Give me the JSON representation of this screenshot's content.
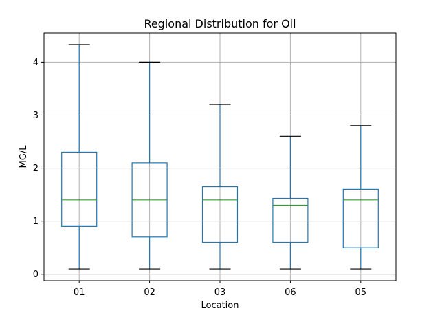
{
  "chart_data": {
    "type": "box",
    "title": "Regional Distribution for Oil",
    "xlabel": "Location",
    "ylabel": "MG/L",
    "categories": [
      "01",
      "02",
      "03",
      "06",
      "05"
    ],
    "boxes": [
      {
        "whisker_low": 0.1,
        "q1": 0.9,
        "median": 1.4,
        "q3": 2.3,
        "whisker_high": 4.33
      },
      {
        "whisker_low": 0.1,
        "q1": 0.7,
        "median": 1.4,
        "q3": 2.1,
        "whisker_high": 4.0
      },
      {
        "whisker_low": 0.1,
        "q1": 0.6,
        "median": 1.4,
        "q3": 1.65,
        "whisker_high": 3.2
      },
      {
        "whisker_low": 0.1,
        "q1": 0.6,
        "median": 1.3,
        "q3": 1.43,
        "whisker_high": 2.6
      },
      {
        "whisker_low": 0.1,
        "q1": 0.5,
        "median": 1.4,
        "q3": 1.6,
        "whisker_high": 2.8
      }
    ],
    "yticks": [
      0,
      1,
      2,
      3,
      4
    ],
    "ylim": [
      -0.12,
      4.55
    ],
    "grid": true,
    "colors": {
      "box": "#1f77b4",
      "median": "#2ca02c",
      "cap": "#000000",
      "grid": "#b0b0b0"
    }
  }
}
